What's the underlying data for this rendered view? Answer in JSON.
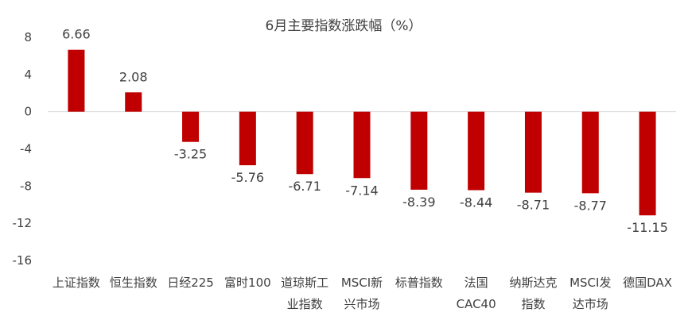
{
  "chart_data": {
    "type": "bar",
    "title": "6月主要指数涨跌幅（%）",
    "xlabel": "",
    "ylabel": "",
    "ylim": [
      -16,
      8
    ],
    "yticks": [
      "8",
      "4",
      "0",
      "-4",
      "-8",
      "-12",
      "-16"
    ],
    "grid": false,
    "legend": "none",
    "bar_color": "#C00000",
    "categories": [
      [
        "上证指数"
      ],
      [
        "恒生指数"
      ],
      [
        "日经225"
      ],
      [
        "富时100"
      ],
      [
        "道琼斯工",
        "业指数"
      ],
      [
        "MSCI新",
        "兴市场"
      ],
      [
        "标普指数"
      ],
      [
        "法国",
        "CAC40"
      ],
      [
        "纳斯达克",
        "指数"
      ],
      [
        "MSCI发",
        "达市场"
      ],
      [
        "德国DAX"
      ]
    ],
    "values": [
      6.66,
      2.08,
      -3.25,
      -5.76,
      -6.71,
      -7.14,
      -8.39,
      -8.44,
      -8.71,
      -8.77,
      -11.15
    ],
    "value_labels": [
      "6.66",
      "2.08",
      "-3.25",
      "-5.76",
      "-6.71",
      "-7.14",
      "-8.39",
      "-8.44",
      "-8.71",
      "-8.77",
      "-11.15"
    ]
  }
}
